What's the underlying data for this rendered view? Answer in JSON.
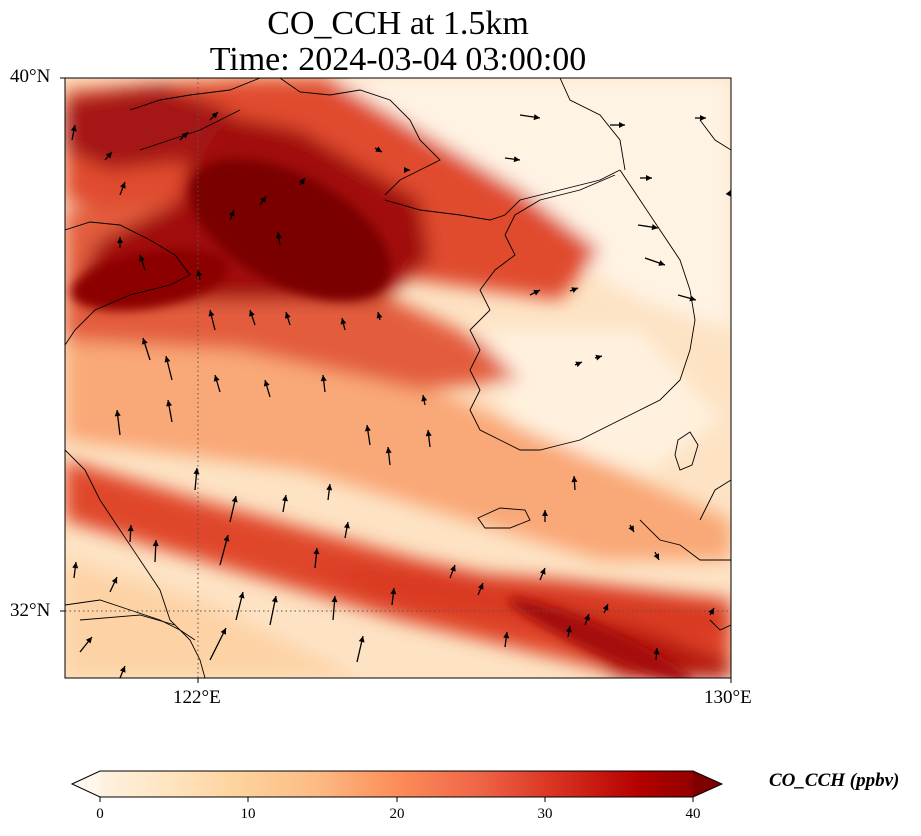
{
  "title": {
    "line1": "CO_CCH at 1.5km",
    "line2": "Time: 2024-03-04 03:00:00"
  },
  "map": {
    "lat_labels": [
      "40°N",
      "32°N"
    ],
    "lon_labels": [
      "122°E",
      "130°E"
    ],
    "extent": {
      "lon_min": 120,
      "lon_max": 130,
      "lat_min": 31,
      "lat_max": 40
    },
    "gridlines": {
      "lon": [
        122
      ],
      "lat": [
        32
      ],
      "style": "dotted"
    },
    "coastline_color": "#000000",
    "has_wind_vectors": true
  },
  "colorbar": {
    "label": "CO_CCH (ppbv)",
    "ticks": [
      "0",
      "10",
      "20",
      "30",
      "40"
    ],
    "min": 0,
    "max": 40,
    "colormap": "OrRd",
    "colors": [
      "#fff7ec",
      "#fee8c8",
      "#fdd49e",
      "#fdbb84",
      "#fc8d59",
      "#ef6548",
      "#d7301f",
      "#b30000",
      "#7f0000"
    ],
    "extend": "both"
  }
}
